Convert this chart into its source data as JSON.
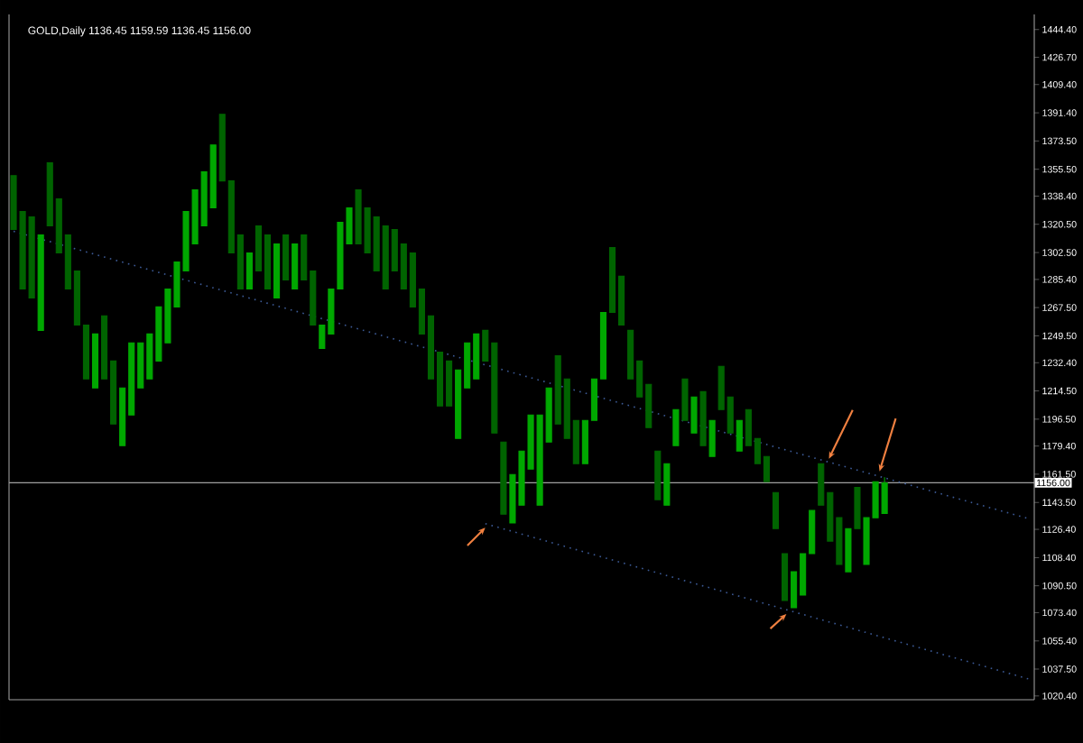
{
  "chart_data": {
    "type": "candlestick",
    "title": "GOLD,Daily  1136.45 1159.59 1136.45 1156.00",
    "colors": [
      "#006400",
      "#006400",
      "#006400",
      "#00a800",
      "#006400",
      "#006400",
      "#006400",
      "#006400",
      "#006400",
      "#00a800",
      "#006400",
      "#006400",
      "#00a800",
      "#00a800",
      "#00a800",
      "#00a800",
      "#00a800",
      "#00a800",
      "#00a800",
      "#00a800",
      "#00a800",
      "#00a800",
      "#00a800",
      "#006400",
      "#006400",
      "#006400",
      "#00a800",
      "#006400",
      "#006400",
      "#00a800",
      "#006400",
      "#00a800",
      "#006400",
      "#006400",
      "#00a800",
      "#00a800",
      "#00a800",
      "#00a800",
      "#006400",
      "#006400",
      "#006400",
      "#006400",
      "#006400",
      "#006400",
      "#006400",
      "#006400",
      "#006400",
      "#006400",
      "#006400",
      "#00a800",
      "#00a800",
      "#00a800",
      "#006400",
      "#006400",
      "#006400",
      "#00a800",
      "#00a800",
      "#00a800",
      "#00a800",
      "#00a800",
      "#006400",
      "#006400",
      "#006400",
      "#00a800",
      "#00a800",
      "#00a800",
      "#006400",
      "#006400",
      "#006400",
      "#006400",
      "#006400",
      "#006400",
      "#00a800",
      "#00a800",
      "#006400",
      "#00a800",
      "#006400",
      "#00a800",
      "#006400",
      "#006400",
      "#00a800",
      "#006400",
      "#006400",
      "#006400",
      "#006400",
      "#006400",
      "#00a800",
      "#00a800",
      "#00a800",
      "#006400",
      "#006400",
      "#006400",
      "#00a800",
      "#006400",
      "#00a800",
      "#00a800",
      "#00a800",
      null,
      null,
      null,
      null,
      null,
      null,
      null,
      null,
      null,
      null,
      null,
      null,
      null,
      null,
      null,
      null
    ],
    "categories": [
      null,
      null,
      null,
      null,
      null,
      null,
      null,
      null,
      null,
      null,
      null,
      null,
      null,
      null,
      null,
      null,
      null,
      null,
      null,
      null,
      null,
      null,
      null,
      null,
      null,
      null,
      null,
      null,
      null,
      null,
      null,
      null,
      null,
      null,
      null,
      null,
      null,
      null,
      null,
      null,
      null,
      null,
      null,
      null,
      null,
      null,
      null,
      null,
      null,
      null,
      null,
      null,
      null,
      null,
      null,
      null,
      null,
      null,
      null,
      null,
      null,
      null,
      null,
      null,
      null,
      null,
      null,
      null,
      null,
      null,
      null,
      null,
      null,
      null,
      null,
      null,
      null,
      null,
      null,
      null,
      null,
      null,
      null,
      null,
      null,
      null,
      null,
      null,
      null,
      null,
      null,
      null,
      null,
      null,
      null,
      null,
      null,
      null,
      null,
      null,
      null,
      null,
      null,
      null,
      null,
      null,
      null,
      null,
      null,
      null,
      null,
      null,
      null
    ],
    "ohlc": [
      [
        1351.5,
        1351.5,
        1317.2,
        1317.2
      ],
      [
        1328.6,
        1328.6,
        1279.3,
        1279.3
      ],
      [
        1325.2,
        1325.2,
        1273.6,
        1273.6
      ],
      [
        1253.0,
        1313.7,
        1253.0,
        1313.7
      ],
      [
        1359.6,
        1359.6,
        1319.5,
        1319.5
      ],
      [
        1336.6,
        1336.6,
        1302.3,
        1302.3
      ],
      [
        1313.7,
        1313.7,
        1279.3,
        1279.3
      ],
      [
        1290.8,
        1290.8,
        1256.4,
        1256.4
      ],
      [
        1256.4,
        1256.4,
        1222.1,
        1222.1
      ],
      [
        1216.3,
        1250.7,
        1216.3,
        1250.7
      ],
      [
        1262.2,
        1262.2,
        1222.1,
        1222.1
      ],
      [
        1233.5,
        1233.5,
        1193.4,
        1193.4
      ],
      [
        1179.6,
        1216.3,
        1179.6,
        1216.3
      ],
      [
        1199.1,
        1245.0,
        1199.1,
        1245.0
      ],
      [
        1216.3,
        1245.0,
        1216.3,
        1245.0
      ],
      [
        1222.1,
        1250.7,
        1222.1,
        1250.7
      ],
      [
        1233.5,
        1267.9,
        1233.5,
        1267.9
      ],
      [
        1245.0,
        1279.3,
        1245.0,
        1279.3
      ],
      [
        1267.9,
        1296.5,
        1267.9,
        1296.5
      ],
      [
        1290.8,
        1328.6,
        1290.8,
        1328.6
      ],
      [
        1308.0,
        1342.4,
        1308.0,
        1342.4
      ],
      [
        1319.5,
        1353.8,
        1319.5,
        1353.8
      ],
      [
        1330.9,
        1371.0,
        1330.9,
        1371.0
      ],
      [
        1390.5,
        1390.5,
        1348.1,
        1348.1
      ],
      [
        1348.1,
        1348.1,
        1302.3,
        1302.3
      ],
      [
        1313.7,
        1313.7,
        1279.3,
        1279.3
      ],
      [
        1279.3,
        1302.3,
        1279.3,
        1302.3
      ],
      [
        1319.5,
        1319.5,
        1290.8,
        1290.8
      ],
      [
        1313.7,
        1313.7,
        1279.3,
        1279.3
      ],
      [
        1273.6,
        1308.0,
        1273.6,
        1308.0
      ],
      [
        1313.7,
        1313.7,
        1285.1,
        1285.1
      ],
      [
        1279.3,
        1308.0,
        1279.3,
        1308.0
      ],
      [
        1313.7,
        1313.7,
        1285.1,
        1285.1
      ],
      [
        1290.8,
        1290.8,
        1256.4,
        1256.4
      ],
      [
        1241.5,
        1256.4,
        1241.5,
        1256.4
      ],
      [
        1250.7,
        1279.3,
        1250.7,
        1279.3
      ],
      [
        1279.3,
        1321.7,
        1279.3,
        1321.7
      ],
      [
        1308.0,
        1330.9,
        1308.0,
        1330.9
      ],
      [
        1342.4,
        1342.4,
        1308.0,
        1308.0
      ],
      [
        1330.9,
        1330.9,
        1302.3,
        1302.3
      ],
      [
        1325.2,
        1325.2,
        1290.8,
        1290.8
      ],
      [
        1319.5,
        1319.5,
        1279.3,
        1279.3
      ],
      [
        1317.2,
        1317.2,
        1290.8,
        1290.8
      ],
      [
        1308.0,
        1308.0,
        1279.3,
        1279.3
      ],
      [
        1302.3,
        1302.3,
        1267.9,
        1267.9
      ],
      [
        1279.3,
        1279.3,
        1250.7,
        1250.7
      ],
      [
        1262.2,
        1262.2,
        1222.1,
        1222.1
      ],
      [
        1239.2,
        1239.2,
        1204.9,
        1204.9
      ],
      [
        1233.5,
        1233.5,
        1204.9,
        1204.9
      ],
      [
        1184.2,
        1227.8,
        1184.2,
        1227.8
      ],
      [
        1216.3,
        1245.0,
        1216.3,
        1245.0
      ],
      [
        1222.1,
        1250.7,
        1222.1,
        1250.7
      ],
      [
        1253.0,
        1253.0,
        1233.5,
        1233.5
      ],
      [
        1245.0,
        1245.0,
        1187.7,
        1187.7
      ],
      [
        1181.9,
        1181.9,
        1136.1,
        1136.1
      ],
      [
        1130.4,
        1161.3,
        1130.4,
        1161.3
      ],
      [
        1141.8,
        1176.2,
        1141.8,
        1176.2
      ],
      [
        1164.7,
        1199.1,
        1164.7,
        1199.1
      ],
      [
        1141.8,
        1199.1,
        1141.8,
        1199.1
      ],
      [
        1181.9,
        1216.3,
        1181.9,
        1216.3
      ],
      [
        1236.9,
        1236.9,
        1193.4,
        1193.4
      ],
      [
        1222.1,
        1222.1,
        1184.2,
        1184.2
      ],
      [
        1195.7,
        1195.7,
        1168.2,
        1168.2
      ],
      [
        1168.2,
        1195.7,
        1168.2,
        1195.7
      ],
      [
        1195.7,
        1222.1,
        1195.7,
        1222.1
      ],
      [
        1222.1,
        1264.4,
        1222.1,
        1264.4
      ],
      [
        1305.7,
        1305.7,
        1264.4,
        1264.4
      ],
      [
        1287.4,
        1287.4,
        1256.4,
        1256.4
      ],
      [
        1253.0,
        1253.0,
        1222.1,
        1222.1
      ],
      [
        1233.5,
        1233.5,
        1210.6,
        1210.6
      ],
      [
        1218.6,
        1218.6,
        1191.1,
        1191.1
      ],
      [
        1176.2,
        1176.2,
        1145.3,
        1145.3
      ],
      [
        1141.8,
        1168.2,
        1141.8,
        1168.2
      ],
      [
        1179.6,
        1202.6,
        1179.6,
        1202.6
      ],
      [
        1222.1,
        1222.1,
        1195.7,
        1195.7
      ],
      [
        1187.7,
        1210.6,
        1187.7,
        1210.6
      ],
      [
        1214.0,
        1214.0,
        1179.6,
        1179.6
      ],
      [
        1172.8,
        1195.7,
        1172.8,
        1195.7
      ],
      [
        1230.1,
        1230.1,
        1202.6,
        1202.6
      ],
      [
        1210.6,
        1210.6,
        1187.7,
        1187.7
      ],
      [
        1176.2,
        1195.7,
        1176.2,
        1195.7
      ],
      [
        1202.6,
        1202.6,
        1179.6,
        1179.6
      ],
      [
        1184.2,
        1184.2,
        1168.2,
        1168.2
      ],
      [
        1172.8,
        1172.8,
        1156.7,
        1156.7
      ],
      [
        1149.8,
        1149.8,
        1126.9,
        1126.9
      ],
      [
        1110.9,
        1110.9,
        1081.1,
        1081.1
      ],
      [
        1076.5,
        1099.4,
        1076.5,
        1099.4
      ],
      [
        1084.5,
        1110.9,
        1084.5,
        1110.9
      ],
      [
        1110.9,
        1138.4,
        1110.9,
        1138.4
      ],
      [
        1168.2,
        1168.2,
        1141.8,
        1141.8
      ],
      [
        1149.8,
        1149.8,
        1118.9,
        1118.9
      ],
      [
        1133.8,
        1133.8,
        1104.0,
        1104.0
      ],
      [
        1099.4,
        1126.9,
        1099.4,
        1126.9
      ],
      [
        1153.1,
        1153.1,
        1126.9,
        1126.9
      ],
      [
        1104.0,
        1133.8,
        1104.0,
        1133.8
      ],
      [
        1133.8,
        1156.7,
        1133.8,
        1156.7
      ],
      [
        1136.45,
        1159.59,
        1136.45,
        1156.0
      ],
      null,
      null,
      null,
      null,
      null,
      null,
      null,
      null,
      null,
      null,
      null,
      null,
      null,
      null,
      null,
      null
    ],
    "series": [
      {
        "type": "line",
        "values": [
          1316,
          null,
          null,
          null,
          null,
          null,
          null,
          null,
          null,
          null,
          null,
          null,
          null,
          null,
          null,
          null,
          null,
          null,
          null,
          null,
          null,
          null,
          null,
          null,
          null,
          null,
          null,
          null,
          null,
          null,
          null,
          null,
          null,
          null,
          null,
          null,
          null,
          null,
          null,
          null,
          null,
          null,
          null,
          null,
          null,
          null,
          null,
          null,
          null,
          null,
          null,
          null,
          null,
          null,
          null,
          null,
          null,
          null,
          null,
          null,
          null,
          null,
          null,
          null,
          null,
          null,
          null,
          null,
          null,
          null,
          null,
          null,
          null,
          null,
          null,
          null,
          null,
          null,
          null,
          null,
          null,
          null,
          null,
          null,
          null,
          null,
          null,
          null,
          null,
          null,
          null,
          null,
          null,
          null,
          null,
          null,
          null,
          null,
          null,
          null,
          null,
          null,
          null,
          null,
          null,
          null,
          null,
          null,
          null,
          null,
          null,
          null,
          1133
        ],
        "color": "#3c5a96",
        "line_style": "dotted"
      },
      {
        "type": "line",
        "values": [
          null,
          null,
          null,
          null,
          null,
          null,
          null,
          null,
          null,
          null,
          null,
          null,
          null,
          null,
          null,
          null,
          null,
          null,
          null,
          null,
          null,
          null,
          null,
          null,
          null,
          null,
          null,
          null,
          null,
          null,
          null,
          null,
          null,
          null,
          null,
          null,
          null,
          null,
          null,
          null,
          null,
          null,
          null,
          null,
          null,
          null,
          null,
          null,
          null,
          null,
          null,
          null,
          1130,
          null,
          null,
          null,
          null,
          null,
          null,
          null,
          null,
          null,
          null,
          null,
          null,
          null,
          null,
          null,
          null,
          null,
          null,
          null,
          null,
          null,
          null,
          null,
          null,
          null,
          null,
          null,
          null,
          null,
          null,
          null,
          null,
          null,
          null,
          null,
          null,
          null,
          null,
          null,
          null,
          null,
          null,
          null,
          null,
          null,
          null,
          null,
          null,
          null,
          null,
          null,
          null,
          null,
          null,
          null,
          null,
          null,
          null,
          null,
          1031
        ],
        "color": "#3c5a96",
        "line_style": "dotted"
      }
    ],
    "ylim": [
      1018,
      1454
    ],
    "yticks": [
      {
        "value": 1444.4,
        "label": "1444.40"
      },
      {
        "value": 1426.7,
        "label": "1426.70"
      },
      {
        "value": 1409.4,
        "label": "1409.40"
      },
      {
        "value": 1391.4,
        "label": "1391.40"
      },
      {
        "value": 1373.5,
        "label": "1373.50"
      },
      {
        "value": 1355.5,
        "label": "1355.50"
      },
      {
        "value": 1338.4,
        "label": "1338.40"
      },
      {
        "value": 1320.5,
        "label": "1320.50"
      },
      {
        "value": 1302.5,
        "label": "1302.50"
      },
      {
        "value": 1285.4,
        "label": "1285.40"
      },
      {
        "value": 1267.5,
        "label": "1267.50"
      },
      {
        "value": 1249.5,
        "label": "1249.50"
      },
      {
        "value": 1232.4,
        "label": "1232.40"
      },
      {
        "value": 1214.5,
        "label": "1214.50"
      },
      {
        "value": 1196.5,
        "label": "1196.50"
      },
      {
        "value": 1179.4,
        "label": "1179.40"
      },
      {
        "value": 1161.5,
        "label": "1161.50"
      },
      {
        "value": 1143.5,
        "label": "1143.50"
      },
      {
        "value": 1126.4,
        "label": "1126.40"
      },
      {
        "value": 1108.4,
        "label": "1108.40"
      },
      {
        "value": 1090.5,
        "label": "1090.50"
      },
      {
        "value": 1073.4,
        "label": "1073.40"
      },
      {
        "value": 1055.4,
        "label": "1055.40"
      },
      {
        "value": 1037.5,
        "label": "1037.50"
      },
      {
        "value": 1020.4,
        "label": "1020.40"
      }
    ],
    "ref_lines": [
      {
        "axis": "y",
        "value": 1156,
        "label": "1156.00",
        "color": "#a0a0a0"
      }
    ],
    "tick_labels": "y"
  }
}
